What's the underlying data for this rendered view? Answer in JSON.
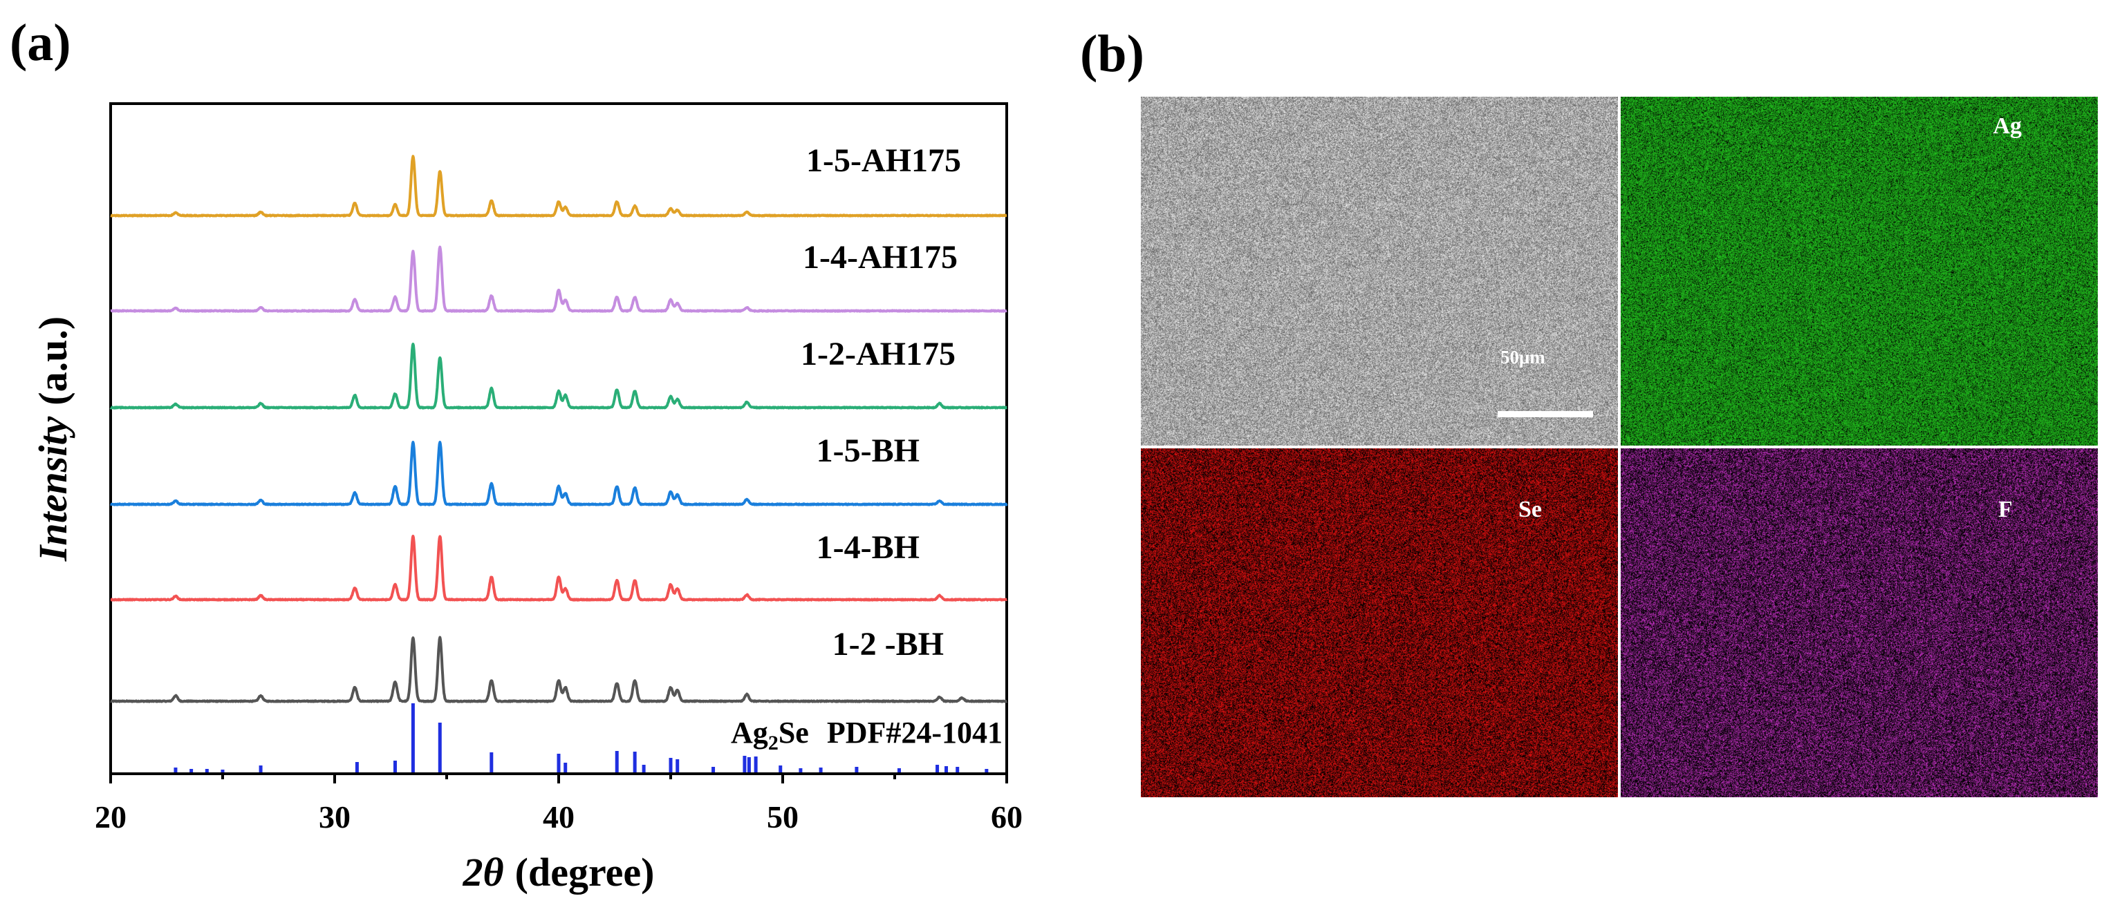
{
  "panel_a_label": "(a)",
  "panel_b_label": "(b)",
  "chart_data": {
    "type": "line",
    "xlabel_symbol": "2θ",
    "xlabel_unit": "(degree)",
    "ylabel": "Intensity",
    "ylabel_unit": "(a.u.)",
    "xlim": [
      20,
      60
    ],
    "x_ticks": [
      20,
      30,
      40,
      50,
      60
    ],
    "y_ticks_shown": false,
    "reference": {
      "label_main": "Ag",
      "label_sub": "2",
      "label_tail": "Se",
      "label_pdf": "PDF#24-1041",
      "color": "#1f2fe0",
      "positions": [
        22.9,
        23.6,
        24.3,
        25.0,
        26.7,
        31.0,
        32.7,
        33.5,
        34.7,
        37.0,
        40.0,
        40.3,
        42.6,
        43.4,
        43.8,
        45.0,
        45.3,
        46.9,
        48.3,
        48.5,
        48.8,
        49.9,
        50.8,
        51.7,
        53.3,
        55.2,
        56.9,
        57.3,
        57.8,
        59.1
      ],
      "intensities": [
        0.07,
        0.05,
        0.05,
        0.04,
        0.1,
        0.15,
        0.17,
        1.0,
        0.72,
        0.29,
        0.27,
        0.14,
        0.31,
        0.3,
        0.11,
        0.21,
        0.19,
        0.08,
        0.24,
        0.22,
        0.23,
        0.1,
        0.06,
        0.07,
        0.08,
        0.06,
        0.11,
        0.09,
        0.08,
        0.05
      ]
    },
    "peak_width_deg": 0.09,
    "series": [
      {
        "name": "1-2 -BH",
        "color": "#555555",
        "peaks": [
          [
            22.9,
            0.08
          ],
          [
            26.7,
            0.08
          ],
          [
            30.9,
            0.2
          ],
          [
            32.7,
            0.28
          ],
          [
            33.5,
            0.92
          ],
          [
            34.7,
            0.92
          ],
          [
            37.0,
            0.3
          ],
          [
            40.0,
            0.3
          ],
          [
            40.3,
            0.2
          ],
          [
            42.6,
            0.26
          ],
          [
            43.4,
            0.3
          ],
          [
            45.0,
            0.2
          ],
          [
            45.3,
            0.16
          ],
          [
            48.4,
            0.1
          ],
          [
            57.0,
            0.06
          ],
          [
            58.0,
            0.05
          ]
        ]
      },
      {
        "name": "1-4-BH",
        "color": "#f25252",
        "peaks": [
          [
            22.9,
            0.05
          ],
          [
            26.7,
            0.06
          ],
          [
            30.9,
            0.17
          ],
          [
            32.7,
            0.22
          ],
          [
            33.5,
            0.92
          ],
          [
            34.7,
            0.92
          ],
          [
            37.0,
            0.33
          ],
          [
            40.0,
            0.33
          ],
          [
            40.3,
            0.16
          ],
          [
            42.6,
            0.28
          ],
          [
            43.4,
            0.28
          ],
          [
            45.0,
            0.22
          ],
          [
            45.3,
            0.16
          ],
          [
            48.4,
            0.07
          ],
          [
            57.0,
            0.06
          ]
        ]
      },
      {
        "name": "1-5-BH",
        "color": "#1a7fdc",
        "peaks": [
          [
            22.9,
            0.05
          ],
          [
            26.7,
            0.06
          ],
          [
            30.9,
            0.17
          ],
          [
            32.7,
            0.26
          ],
          [
            33.5,
            0.9
          ],
          [
            34.7,
            0.9
          ],
          [
            37.0,
            0.3
          ],
          [
            40.0,
            0.26
          ],
          [
            40.3,
            0.16
          ],
          [
            42.6,
            0.26
          ],
          [
            43.4,
            0.24
          ],
          [
            45.0,
            0.18
          ],
          [
            45.3,
            0.14
          ],
          [
            48.4,
            0.07
          ],
          [
            57.0,
            0.05
          ]
        ]
      },
      {
        "name": "1-2-AH175",
        "color": "#2aae77",
        "peaks": [
          [
            22.9,
            0.05
          ],
          [
            26.7,
            0.06
          ],
          [
            30.9,
            0.18
          ],
          [
            32.7,
            0.2
          ],
          [
            33.5,
            0.92
          ],
          [
            34.7,
            0.72
          ],
          [
            37.0,
            0.28
          ],
          [
            40.0,
            0.24
          ],
          [
            40.3,
            0.18
          ],
          [
            42.6,
            0.26
          ],
          [
            43.4,
            0.24
          ],
          [
            45.0,
            0.16
          ],
          [
            45.3,
            0.12
          ],
          [
            48.4,
            0.08
          ],
          [
            57.0,
            0.06
          ]
        ]
      },
      {
        "name": "1-4-AH175",
        "color": "#c58de0",
        "peaks": [
          [
            22.9,
            0.04
          ],
          [
            26.7,
            0.05
          ],
          [
            30.9,
            0.17
          ],
          [
            32.7,
            0.2
          ],
          [
            33.5,
            0.86
          ],
          [
            34.7,
            0.92
          ],
          [
            37.0,
            0.22
          ],
          [
            40.0,
            0.3
          ],
          [
            40.3,
            0.16
          ],
          [
            42.6,
            0.2
          ],
          [
            43.4,
            0.2
          ],
          [
            45.0,
            0.16
          ],
          [
            45.3,
            0.11
          ],
          [
            48.4,
            0.05
          ]
        ]
      },
      {
        "name": "1-5-AH175",
        "color": "#e0a126",
        "peaks": [
          [
            22.9,
            0.04
          ],
          [
            26.7,
            0.05
          ],
          [
            30.9,
            0.18
          ],
          [
            32.7,
            0.16
          ],
          [
            33.5,
            0.86
          ],
          [
            34.7,
            0.64
          ],
          [
            37.0,
            0.22
          ],
          [
            40.0,
            0.2
          ],
          [
            40.3,
            0.12
          ],
          [
            42.6,
            0.2
          ],
          [
            43.4,
            0.14
          ],
          [
            45.0,
            0.1
          ],
          [
            45.3,
            0.08
          ],
          [
            48.4,
            0.05
          ]
        ]
      }
    ]
  },
  "sem": {
    "scale_label": "50μm",
    "tiles": [
      {
        "name": "sem",
        "label": "",
        "color": "#c0c0c0"
      },
      {
        "name": "ag",
        "label": "Ag",
        "color": "#22c41e"
      },
      {
        "name": "se",
        "label": "Se",
        "color": "#e01010"
      },
      {
        "name": "f",
        "label": "F",
        "color": "#c030c0"
      }
    ]
  }
}
